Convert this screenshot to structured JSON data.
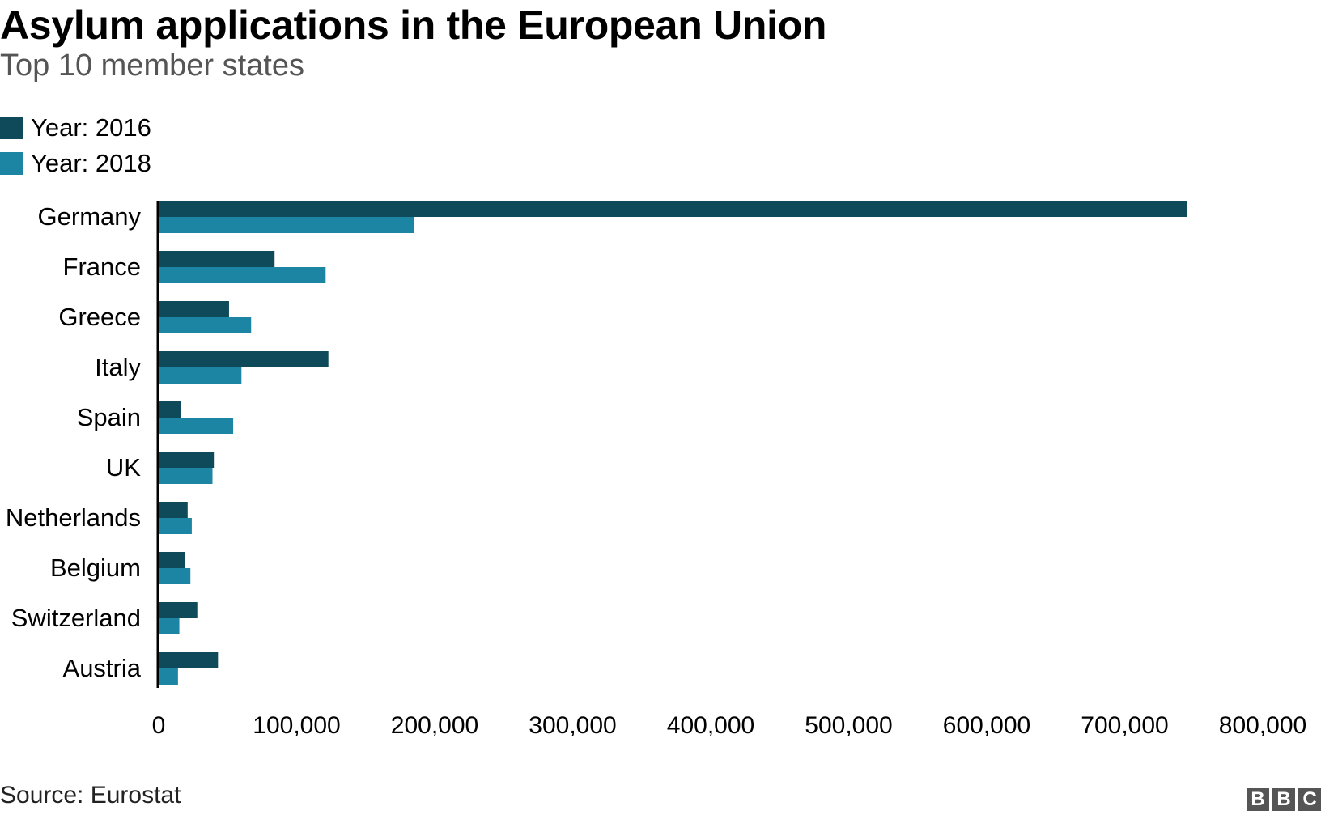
{
  "chart_data": {
    "type": "bar",
    "orientation": "horizontal",
    "title": "Asylum applications in the European Union",
    "subtitle": "Top 10 member states",
    "categories": [
      "Germany",
      "France",
      "Greece",
      "Italy",
      "Spain",
      "UK",
      "Netherlands",
      "Belgium",
      "Switzerland",
      "Austria"
    ],
    "series": [
      {
        "name": "Year: 2016",
        "color": "#0e4a5a",
        "values": [
          745000,
          84000,
          51000,
          123000,
          16000,
          40000,
          21000,
          19000,
          28000,
          43000
        ]
      },
      {
        "name": "Year: 2018",
        "color": "#1b85a3",
        "values": [
          185000,
          121000,
          67000,
          60000,
          54000,
          39000,
          24000,
          23000,
          15000,
          14000
        ]
      }
    ],
    "xlim": [
      0,
      800000
    ],
    "xticks": [
      0,
      100000,
      200000,
      300000,
      400000,
      500000,
      600000,
      700000,
      800000
    ],
    "xtick_labels": [
      "0",
      "100,000",
      "200,000",
      "300,000",
      "400,000",
      "500,000",
      "600,000",
      "700,000",
      "800,000"
    ],
    "grid": false,
    "legend_position": "top-left"
  },
  "footer": {
    "source": "Source: Eurostat",
    "logo_letters": [
      "B",
      "B",
      "C"
    ]
  }
}
